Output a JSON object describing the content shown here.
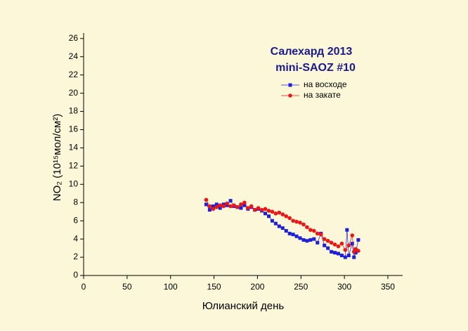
{
  "chart_data": {
    "type": "scatter",
    "title": [
      "Салехард 2013",
      "mini-SAOZ #10"
    ],
    "x_label": "Юлианский день",
    "y_label": "NO₂ (10¹⁵мол/см²)",
    "xlim": [
      0,
      367
    ],
    "xticks": [
      0,
      50,
      100,
      150,
      200,
      250,
      300,
      350
    ],
    "ylim": [
      0,
      26.6
    ],
    "yticks": [
      0,
      2,
      4,
      6,
      8,
      10,
      12,
      14,
      16,
      18,
      20,
      22,
      24,
      26
    ],
    "legend": "upper right",
    "series": [
      {
        "name": "на восходе",
        "color": "#1f1fd8",
        "marker": "square",
        "x": [
          141,
          145,
          149,
          153,
          157,
          161,
          165,
          169,
          173,
          177,
          181,
          185,
          189,
          193,
          197,
          201,
          205,
          209,
          213,
          217,
          221,
          225,
          229,
          233,
          237,
          241,
          245,
          249,
          253,
          257,
          261,
          265,
          269,
          273,
          277,
          281,
          285,
          289,
          293,
          297,
          301,
          303,
          305,
          309,
          311,
          313,
          316
        ],
        "values": [
          7.8,
          7.2,
          7.6,
          7.8,
          7.4,
          7.8,
          7.7,
          8.2,
          7.6,
          7.5,
          7.4,
          7.7,
          7.3,
          7.5,
          7.2,
          7.3,
          7.1,
          6.8,
          6.5,
          6.0,
          5.7,
          5.4,
          5.2,
          4.9,
          4.6,
          4.5,
          4.3,
          4.1,
          3.9,
          3.8,
          3.9,
          4.0,
          3.6,
          4.6,
          3.3,
          3.0,
          2.6,
          2.5,
          2.4,
          2.2,
          2.0,
          5.0,
          2.2,
          3.5,
          2.0,
          2.5,
          3.9
        ]
      },
      {
        "name": "на закате",
        "color": "#e81818",
        "marker": "circle",
        "x": [
          141,
          145,
          149,
          153,
          157,
          161,
          165,
          169,
          173,
          177,
          181,
          185,
          189,
          193,
          197,
          201,
          205,
          209,
          213,
          217,
          221,
          225,
          229,
          233,
          237,
          241,
          245,
          249,
          253,
          257,
          261,
          265,
          269,
          273,
          277,
          281,
          285,
          289,
          293,
          297,
          301,
          305,
          309,
          311,
          313,
          316
        ],
        "values": [
          8.3,
          7.6,
          7.3,
          7.5,
          7.7,
          7.6,
          7.9,
          7.6,
          7.7,
          7.5,
          7.8,
          8.0,
          7.4,
          7.6,
          7.2,
          7.4,
          7.2,
          7.3,
          7.1,
          7.0,
          6.8,
          6.9,
          6.7,
          6.5,
          6.3,
          6.0,
          5.9,
          5.8,
          5.6,
          5.3,
          5.0,
          4.9,
          4.6,
          4.5,
          4.0,
          3.8,
          3.6,
          3.4,
          3.2,
          3.5,
          2.8,
          3.3,
          4.4,
          2.6,
          2.9,
          2.7
        ]
      }
    ]
  }
}
